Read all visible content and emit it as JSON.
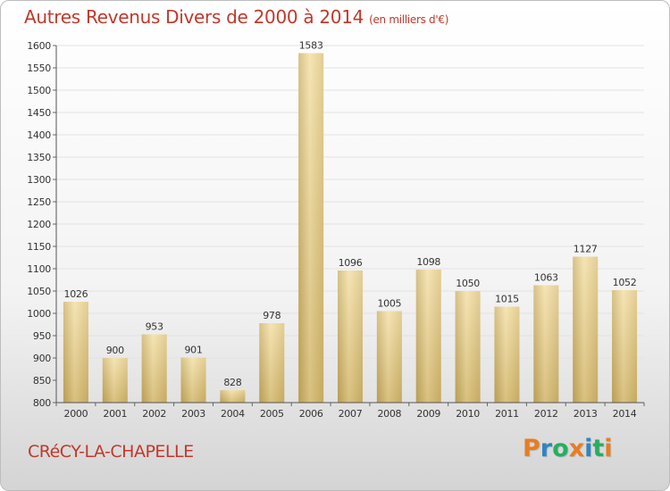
{
  "title": "Autres Revenus Divers de 2000 à 2014",
  "subtitle": "(en milliers d'€)",
  "city": "CRéCY-LA-CHAPELLE",
  "logo": {
    "letters": [
      "P",
      "r",
      "o",
      "x",
      "i",
      "t",
      "i"
    ],
    "colors": [
      "#e67e22",
      "#2e86c1",
      "#27ae60",
      "#e67e22",
      "#2e86c1",
      "#27ae60",
      "#e67e22"
    ]
  },
  "chart_data": {
    "type": "bar",
    "title": "Autres Revenus Divers de 2000 à 2014",
    "subtitle": "(en milliers d'€)",
    "categories": [
      "2000",
      "2001",
      "2002",
      "2003",
      "2004",
      "2005",
      "2006",
      "2007",
      "2008",
      "2009",
      "2010",
      "2011",
      "2012",
      "2013",
      "2014"
    ],
    "values": [
      1026,
      900,
      953,
      901,
      828,
      978,
      1583,
      1096,
      1005,
      1098,
      1050,
      1015,
      1063,
      1127,
      1052
    ],
    "ylim": [
      800,
      1600
    ],
    "yticks": [
      800,
      850,
      900,
      950,
      1000,
      1050,
      1100,
      1150,
      1200,
      1250,
      1300,
      1350,
      1400,
      1450,
      1500,
      1550,
      1600
    ],
    "grid": true,
    "legend": "none",
    "bar_color": "#e6cc85"
  }
}
